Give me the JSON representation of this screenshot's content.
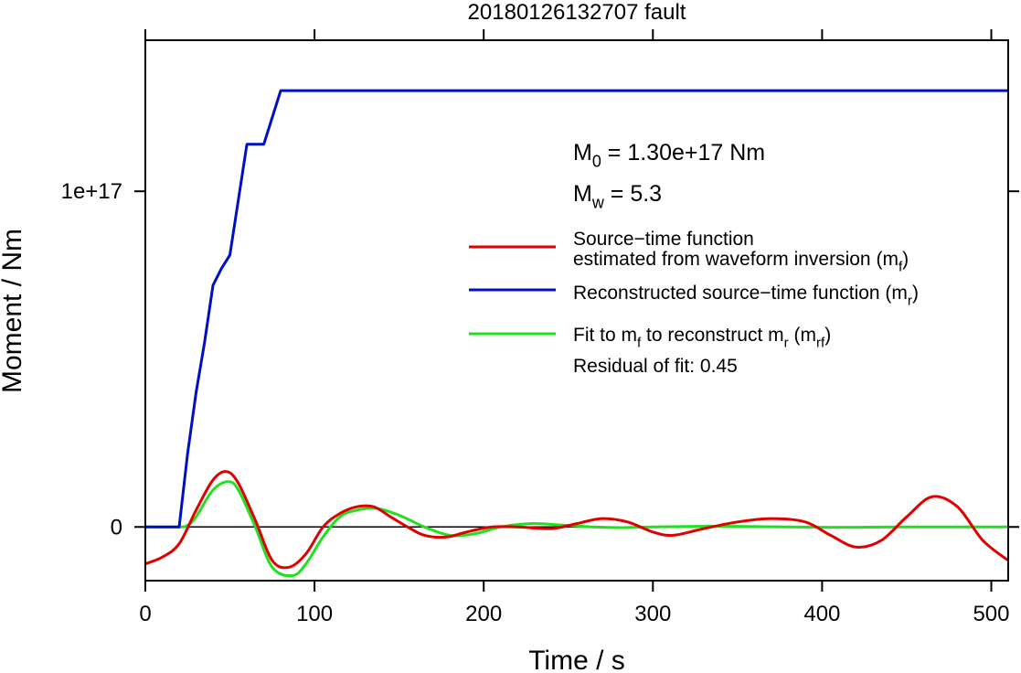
{
  "chart_data": {
    "type": "line",
    "title": "20180126132707 fault",
    "xlabel": "Time / s",
    "ylabel": "Moment / Nm",
    "xlim": [
      0,
      510
    ],
    "ylim": [
      -1.6e+16,
      1.45e+17
    ],
    "x_ticks": [
      0,
      100,
      200,
      300,
      400,
      500
    ],
    "x_tick_labels": [
      "0",
      "100",
      "200",
      "300",
      "400",
      "500"
    ],
    "y_ticks": [
      0,
      1e+17
    ],
    "y_tick_labels": [
      "0",
      "1e+17"
    ],
    "grid": false,
    "legend_position": "right",
    "annotations": {
      "m0": {
        "symbol": "M",
        "sub": "0",
        "text": " = 1.30e+17 Nm"
      },
      "mw": {
        "symbol": "M",
        "sub": "w",
        "text": " = 5.3"
      },
      "residual": "Residual of fit: 0.45"
    },
    "legend": [
      {
        "color": "#e00000",
        "parts": [
          {
            "t": "Source−time function",
            "line": 1
          },
          {
            "t": "estimated from waveform inversion (m",
            "line": 2
          },
          {
            "t": "f",
            "sub": true,
            "line": 2
          },
          {
            "t": ")",
            "line": 2
          }
        ]
      },
      {
        "color": "#0010c0",
        "parts": [
          {
            "t": "Reconstructed source−time function (m",
            "line": 1
          },
          {
            "t": "r",
            "sub": true,
            "line": 1
          },
          {
            "t": ")",
            "line": 1
          }
        ]
      },
      {
        "color": "#20e020",
        "parts": [
          {
            "t": "Fit to m",
            "line": 1
          },
          {
            "t": "f",
            "sub": true,
            "line": 1
          },
          {
            "t": " to reconstruct m",
            "line": 1
          },
          {
            "t": "r",
            "sub": true,
            "line": 1
          },
          {
            "t": " (m",
            "line": 1
          },
          {
            "t": "rf",
            "sub": true,
            "line": 1
          },
          {
            "t": ")",
            "line": 1
          }
        ]
      }
    ],
    "series": [
      {
        "name": "Reconstructed source−time function (mr)",
        "color": "#0010c0",
        "x": [
          0,
          20,
          25,
          30,
          35,
          40,
          45,
          50,
          60,
          70,
          80,
          510
        ],
        "y": [
          0,
          0,
          2.2e+16,
          4e+16,
          5.5e+16,
          7.2e+16,
          7.7e+16,
          8.1e+16,
          1.14e+17,
          1.14e+17,
          1.3e+17,
          1.3e+17
        ]
      },
      {
        "name": "Source−time function estimated from waveform inversion (mf)",
        "color": "#e00000",
        "x": [
          0,
          10,
          20,
          30,
          40,
          48,
          55,
          65,
          75,
          85,
          95,
          105,
          115,
          125,
          135,
          145,
          155,
          165,
          178,
          190,
          205,
          220,
          240,
          255,
          270,
          285,
          300,
          312,
          330,
          350,
          370,
          390,
          405,
          420,
          435,
          450,
          465,
          480,
          495,
          510
        ],
        "y": [
          -1.1e+16,
          -9000000000000000.0,
          -5000000000000000.0,
          5000000000000000.0,
          1.4e+16,
          1.65e+16,
          1.3e+16,
          2000000000000000.0,
          -1e+16,
          -1.2e+16,
          -8000000000000000.0,
          0,
          4000000000000000.0,
          6000000000000000.0,
          6000000000000000.0,
          3000000000000000.0,
          0,
          -2500000000000000.0,
          -3000000000000000.0,
          -1500000000000000.0,
          0,
          0,
          -500000000000000.0,
          1000000000000000.0,
          2500000000000000.0,
          1500000000000000.0,
          -1500000000000000.0,
          -2500000000000000.0,
          -500000000000000.0,
          1500000000000000.0,
          2500000000000000.0,
          1500000000000000.0,
          -2500000000000000.0,
          -6000000000000000.0,
          -4000000000000000.0,
          3000000000000000.0,
          9000000000000000.0,
          6000000000000000.0,
          -4000000000000000.0,
          -1e+16
        ]
      },
      {
        "name": "Fit to mf to reconstruct mr (mrf)",
        "color": "#20e020",
        "x": [
          0,
          20,
          25,
          30,
          40,
          49,
          55,
          65,
          75,
          87,
          95,
          105,
          115,
          125,
          137,
          150,
          165,
          180,
          195,
          210,
          228,
          245,
          265,
          280,
          300,
          340,
          400,
          450,
          510
        ],
        "y": [
          0,
          0,
          500000000000000.0,
          3000000000000000.0,
          1.1e+16,
          1.35e+16,
          1.1e+16,
          0,
          -1.2e+16,
          -1.45e+16,
          -1.1e+16,
          -3000000000000000.0,
          3000000000000000.0,
          5000000000000000.0,
          5500000000000000.0,
          3500000000000000.0,
          0,
          -2500000000000000.0,
          -2000000000000000.0,
          0,
          1000000000000000.0,
          600000000000000.0,
          0,
          -200000000000000.0,
          0,
          200000000000000.0,
          -100000000000000.0,
          0,
          0
        ]
      }
    ]
  }
}
